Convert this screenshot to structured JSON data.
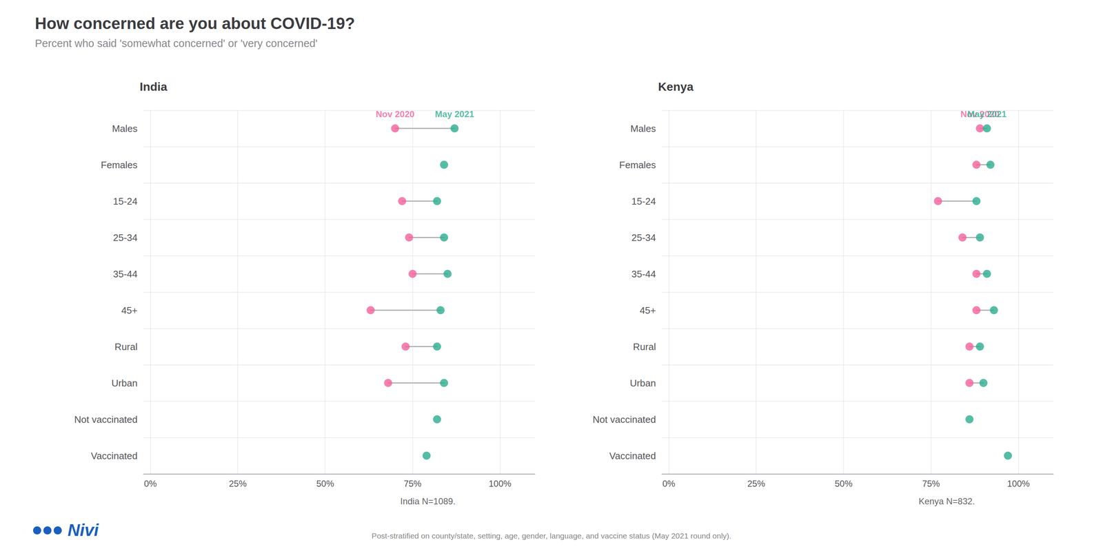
{
  "chart_data": {
    "type": "dumbbell",
    "title": "How concerned are you about COVID-19?",
    "subtitle": "Percent who said 'somewhat concerned' or 'very concerned'",
    "note": "Post-stratified on county/state, setting, age, gender, language, and vaccine status (May 2021 round only).",
    "annotations": [
      {
        "text": "Nivi",
        "color": "#1A5FBF"
      }
    ],
    "orientation": "horizontal",
    "grid": true,
    "categories": [
      "Males",
      "Females",
      "15-24",
      "25-34",
      "35-44",
      "45+",
      "Rural",
      "Urban",
      "Not vaccinated",
      "Vaccinated"
    ],
    "xlim": [
      -0.02,
      1.1
    ],
    "xticks": [
      {
        "value": 0,
        "label": "0%"
      },
      {
        "value": 0.25,
        "label": "25%"
      },
      {
        "value": 0.5,
        "label": "50%"
      },
      {
        "value": 0.75,
        "label": "75%"
      },
      {
        "value": 1.0,
        "label": "100%"
      }
    ],
    "panels": [
      {
        "title": "India",
        "note": "India N=1089.",
        "series": [
          {
            "name": "Nov 2020",
            "color": "#F2609C",
            "values": [
              0.7,
              null,
              0.72,
              0.74,
              0.75,
              0.63,
              0.73,
              0.68,
              null,
              null
            ]
          },
          {
            "name": "May 2021",
            "color": "#2BAD8E",
            "values": [
              0.87,
              0.84,
              0.82,
              0.84,
              0.85,
              0.83,
              0.82,
              0.84,
              0.82,
              0.79
            ]
          }
        ]
      },
      {
        "title": "Kenya",
        "note": "Kenya N=832.",
        "series": [
          {
            "name": "Nov 2020",
            "color": "#F2609C",
            "values": [
              0.89,
              0.88,
              0.77,
              0.84,
              0.88,
              0.88,
              0.86,
              0.86,
              null,
              null
            ]
          },
          {
            "name": "May 2021",
            "color": "#2BAD8E",
            "values": [
              0.91,
              0.92,
              0.88,
              0.89,
              0.91,
              0.93,
              0.89,
              0.9,
              0.86,
              0.97
            ]
          }
        ]
      }
    ]
  }
}
